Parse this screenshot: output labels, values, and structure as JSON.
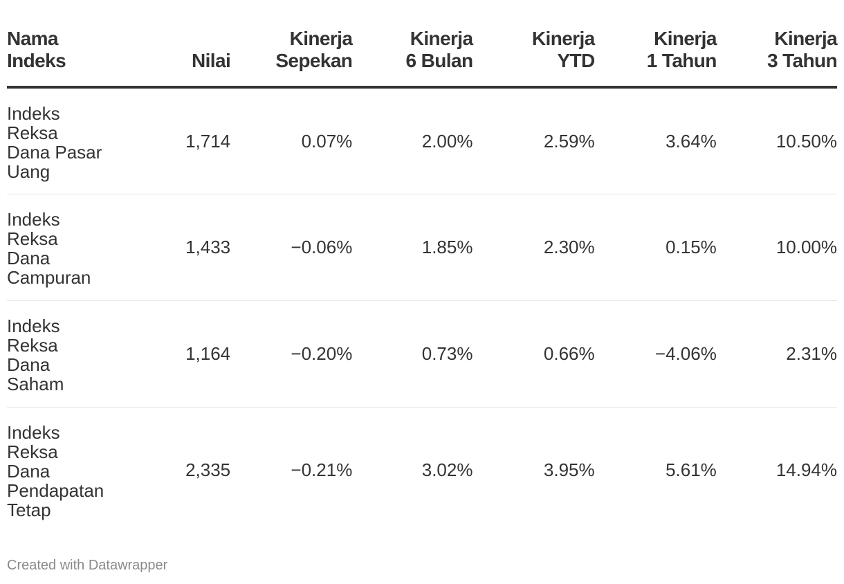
{
  "chart_data": {
    "type": "table",
    "columns": [
      [
        "Nama",
        "Indeks"
      ],
      [
        "Nilai"
      ],
      [
        "Kinerja",
        "Sepekan"
      ],
      [
        "Kinerja",
        "6 Bulan"
      ],
      [
        "Kinerja",
        "YTD"
      ],
      [
        "Kinerja",
        "1 Tahun"
      ],
      [
        "Kinerja",
        "3 Tahun"
      ]
    ],
    "rows": [
      {
        "name": [
          "Indeks",
          "Reksa",
          "Dana Pasar",
          "Uang"
        ],
        "cells": [
          "1,714",
          "0.07%",
          "2.00%",
          "2.59%",
          "3.64%",
          "10.50%"
        ]
      },
      {
        "name": [
          "Indeks",
          "Reksa",
          "Dana",
          "Campuran"
        ],
        "cells": [
          "1,433",
          "−0.06%",
          "1.85%",
          "2.30%",
          "0.15%",
          "10.00%"
        ]
      },
      {
        "name": [
          "Indeks",
          "Reksa",
          "Dana",
          "Saham"
        ],
        "cells": [
          "1,164",
          "−0.20%",
          "0.73%",
          "0.66%",
          "−4.06%",
          "2.31%"
        ]
      },
      {
        "name": [
          "Indeks",
          "Reksa",
          "Dana",
          "Pendapatan",
          "Tetap"
        ],
        "cells": [
          "2,335",
          "−0.21%",
          "3.02%",
          "3.95%",
          "5.61%",
          "14.94%"
        ]
      }
    ]
  },
  "footer": "Created with Datawrapper"
}
